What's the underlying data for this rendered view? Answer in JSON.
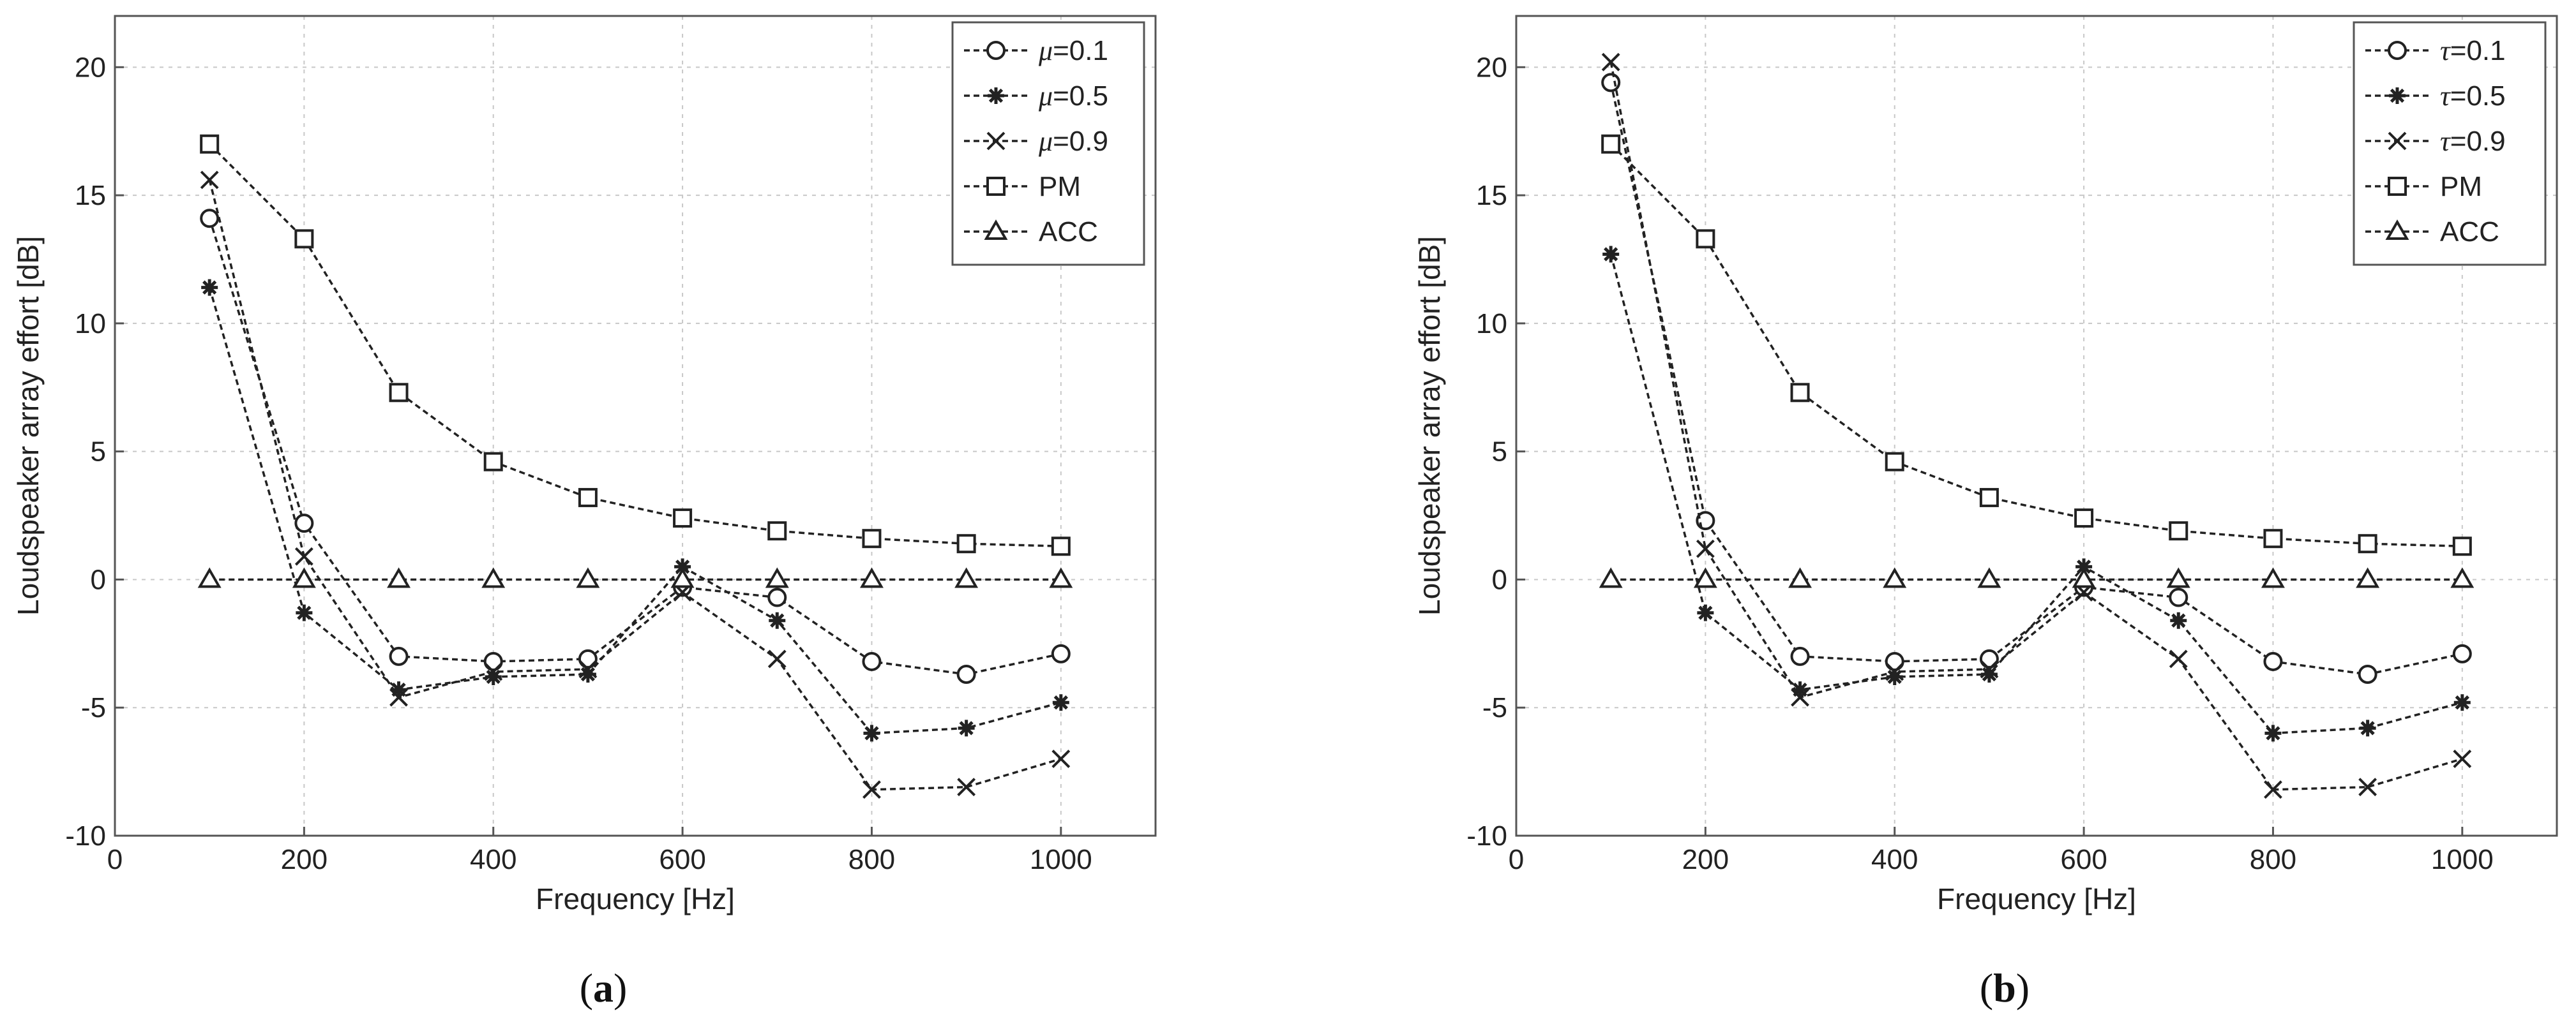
{
  "chart_data": [
    {
      "type": "line",
      "panel": "a",
      "caption": "(a)",
      "caption_letter": "a",
      "xlabel": "Frequency [Hz]",
      "ylabel": "Loudspeaker array effort [dB]",
      "xlim": [
        0,
        1100
      ],
      "ylim": [
        -10,
        22
      ],
      "xticks": [
        0,
        200,
        400,
        600,
        800,
        1000
      ],
      "yticks": [
        -10,
        -5,
        0,
        5,
        10,
        15,
        20
      ],
      "grid": true,
      "legend_position": "top-right",
      "x": [
        100,
        200,
        300,
        400,
        500,
        600,
        700,
        800,
        900,
        1000
      ],
      "series": [
        {
          "name": "μ=0.1",
          "symbol": "μ",
          "suffix": "=0.1",
          "marker": "circle",
          "values": [
            14.1,
            2.2,
            -3.0,
            -3.2,
            -3.1,
            -0.3,
            -0.7,
            -3.2,
            -3.7,
            -2.9
          ]
        },
        {
          "name": "μ=0.5",
          "symbol": "μ",
          "suffix": "=0.5",
          "marker": "star",
          "values": [
            11.4,
            -1.3,
            -4.3,
            -3.8,
            -3.7,
            0.5,
            -1.6,
            -6.0,
            -5.8,
            -4.8
          ]
        },
        {
          "name": "μ=0.9",
          "symbol": "μ",
          "suffix": "=0.9",
          "marker": "x",
          "values": [
            15.6,
            0.9,
            -4.6,
            -3.6,
            -3.5,
            -0.5,
            -3.1,
            -8.2,
            -8.1,
            -7.0
          ]
        },
        {
          "name": "PM",
          "symbol": "",
          "suffix": "PM",
          "marker": "square",
          "values": [
            17.0,
            13.3,
            7.3,
            4.6,
            3.2,
            2.4,
            1.9,
            1.6,
            1.4,
            1.3
          ]
        },
        {
          "name": "ACC",
          "symbol": "",
          "suffix": "ACC",
          "marker": "triangle",
          "values": [
            0,
            0,
            0,
            0,
            0,
            0,
            0,
            0,
            0,
            0
          ]
        }
      ]
    },
    {
      "type": "line",
      "panel": "b",
      "caption": "(b)",
      "caption_letter": "b",
      "xlabel": "Frequency [Hz]",
      "ylabel": "Loudspeaker array effort [dB]",
      "xlim": [
        0,
        1100
      ],
      "ylim": [
        -10,
        22
      ],
      "xticks": [
        0,
        200,
        400,
        600,
        800,
        1000
      ],
      "yticks": [
        -10,
        -5,
        0,
        5,
        10,
        15,
        20
      ],
      "grid": true,
      "legend_position": "top-right",
      "x": [
        100,
        200,
        300,
        400,
        500,
        600,
        700,
        800,
        900,
        1000
      ],
      "series": [
        {
          "name": "τ=0.1",
          "symbol": "τ",
          "suffix": "=0.1",
          "marker": "circle",
          "values": [
            19.4,
            2.3,
            -3.0,
            -3.2,
            -3.1,
            -0.3,
            -0.7,
            -3.2,
            -3.7,
            -2.9
          ]
        },
        {
          "name": "τ=0.5",
          "symbol": "τ",
          "suffix": "=0.5",
          "marker": "star",
          "values": [
            12.7,
            -1.3,
            -4.3,
            -3.8,
            -3.7,
            0.5,
            -1.6,
            -6.0,
            -5.8,
            -4.8
          ]
        },
        {
          "name": "τ=0.9",
          "symbol": "τ",
          "suffix": "=0.9",
          "marker": "x",
          "values": [
            20.2,
            1.2,
            -4.6,
            -3.6,
            -3.5,
            -0.5,
            -3.1,
            -8.2,
            -8.1,
            -7.0
          ]
        },
        {
          "name": "PM",
          "symbol": "",
          "suffix": "PM",
          "marker": "square",
          "values": [
            17.0,
            13.3,
            7.3,
            4.6,
            3.2,
            2.4,
            1.9,
            1.6,
            1.4,
            1.3
          ]
        },
        {
          "name": "ACC",
          "symbol": "",
          "suffix": "ACC",
          "marker": "triangle",
          "values": [
            0,
            0,
            0,
            0,
            0,
            0,
            0,
            0,
            0,
            0
          ]
        }
      ]
    }
  ]
}
